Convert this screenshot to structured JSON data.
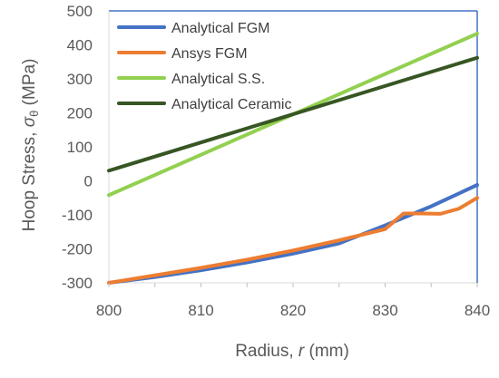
{
  "chart_data": {
    "type": "line",
    "title": "",
    "xlabel_prefix": "Radius, ",
    "xlabel_symbol": "r",
    "xlabel_suffix": " (mm)",
    "ylabel_prefix": "Hoop Stress, ",
    "ylabel_symbol": "σ",
    "ylabel_subscript": "θ",
    "ylabel_suffix": " (MPa)",
    "xlim": [
      800,
      840
    ],
    "ylim": [
      -300,
      500
    ],
    "x_ticks": [
      800,
      810,
      820,
      830,
      840
    ],
    "y_ticks": [
      -300,
      -200,
      -100,
      0,
      100,
      200,
      300,
      400,
      500
    ],
    "x_tick_labels": [
      "800",
      "810",
      "820",
      "830",
      "840"
    ],
    "y_tick_labels": [
      "-300",
      "-200",
      "-100",
      "0",
      "100",
      "200",
      "300",
      "400",
      "500"
    ],
    "grid": false,
    "legend_position": "top-left",
    "series": [
      {
        "name": "Analytical FGM",
        "color": "#4472C4",
        "x": [
          800,
          805,
          810,
          815,
          820,
          825,
          830,
          835,
          840
        ],
        "y": [
          -300,
          -283,
          -263,
          -240,
          -214,
          -184,
          -131,
          -75,
          -12
        ]
      },
      {
        "name": "Ansys FGM",
        "color": "#ED7D31",
        "x": [
          800,
          805,
          810,
          815,
          820,
          825,
          830,
          832,
          834,
          836,
          838,
          840
        ],
        "y": [
          -300,
          -278,
          -256,
          -232,
          -205,
          -175,
          -142,
          -96,
          -96,
          -97,
          -82,
          -50
        ]
      },
      {
        "name": "Analytical S.S.",
        "color": "#92D050",
        "x": [
          800,
          840
        ],
        "y": [
          -42,
          433
        ]
      },
      {
        "name": "Analytical Ceramic",
        "color": "#375623",
        "x": [
          800,
          840
        ],
        "y": [
          30,
          362
        ]
      }
    ]
  }
}
